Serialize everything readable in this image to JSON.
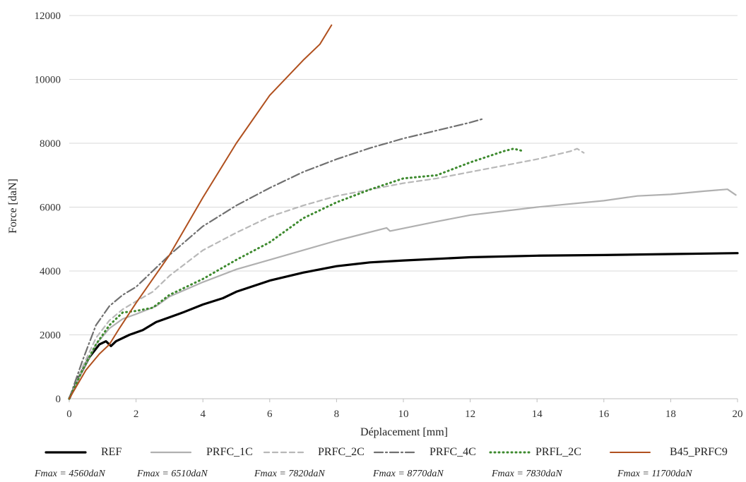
{
  "chart_data": {
    "type": "line",
    "xlabel": "Déplacement [mm]",
    "ylabel": "Force [daN]",
    "xlim": [
      0,
      20
    ],
    "ylim": [
      0,
      12000
    ],
    "x_ticks": [
      "0",
      "2",
      "4",
      "6",
      "8",
      "10",
      "12",
      "14",
      "16",
      "18",
      "20"
    ],
    "y_ticks": [
      "0",
      "2000",
      "4000",
      "6000",
      "8000",
      "10000",
      "12000"
    ],
    "grid": "horizontal",
    "legend_position": "bottom",
    "series": [
      {
        "name": "REF",
        "color": "#000000",
        "style": "solid",
        "width": 3.2,
        "fmax": "Fmax = 4560daN",
        "points": [
          [
            0,
            0
          ],
          [
            0.3,
            700
          ],
          [
            0.6,
            1300
          ],
          [
            0.9,
            1700
          ],
          [
            1.1,
            1800
          ],
          [
            1.25,
            1650
          ],
          [
            1.4,
            1800
          ],
          [
            1.8,
            2000
          ],
          [
            2.2,
            2150
          ],
          [
            2.6,
            2400
          ],
          [
            3.0,
            2550
          ],
          [
            3.4,
            2700
          ],
          [
            4.0,
            2950
          ],
          [
            4.6,
            3150
          ],
          [
            5.0,
            3350
          ],
          [
            6.0,
            3700
          ],
          [
            7.0,
            3950
          ],
          [
            8.0,
            4150
          ],
          [
            9.0,
            4270
          ],
          [
            10.0,
            4330
          ],
          [
            12.0,
            4430
          ],
          [
            14.0,
            4480
          ],
          [
            16.0,
            4500
          ],
          [
            18.0,
            4530
          ],
          [
            20.0,
            4560
          ]
        ]
      },
      {
        "name": "PRFC_1C",
        "color": "#b0b0b0",
        "style": "solid",
        "width": 2.2,
        "fmax": "Fmax = 6510daN",
        "points": [
          [
            0,
            0
          ],
          [
            0.4,
            900
          ],
          [
            0.8,
            1700
          ],
          [
            1.2,
            2200
          ],
          [
            1.6,
            2500
          ],
          [
            2.0,
            2650
          ],
          [
            2.6,
            2900
          ],
          [
            3.0,
            3200
          ],
          [
            4.0,
            3650
          ],
          [
            5.0,
            4050
          ],
          [
            6.0,
            4350
          ],
          [
            7.0,
            4650
          ],
          [
            8.0,
            4950
          ],
          [
            9.5,
            5350
          ],
          [
            9.6,
            5250
          ],
          [
            11.0,
            5550
          ],
          [
            12.0,
            5750
          ],
          [
            14.0,
            6000
          ],
          [
            16.0,
            6200
          ],
          [
            17.0,
            6350
          ],
          [
            18.0,
            6400
          ],
          [
            19.0,
            6500
          ],
          [
            19.7,
            6560
          ],
          [
            19.95,
            6380
          ]
        ]
      },
      {
        "name": "PRFC_2C",
        "color": "#b8b8b8",
        "style": "dashed",
        "width": 2.2,
        "fmax": "Fmax = 7820daN",
        "points": [
          [
            0,
            0
          ],
          [
            0.4,
            1000
          ],
          [
            0.8,
            1900
          ],
          [
            1.2,
            2450
          ],
          [
            1.6,
            2800
          ],
          [
            2.0,
            3050
          ],
          [
            2.5,
            3350
          ],
          [
            3.0,
            3850
          ],
          [
            4.0,
            4650
          ],
          [
            5.0,
            5200
          ],
          [
            6.0,
            5700
          ],
          [
            7.0,
            6050
          ],
          [
            8.0,
            6350
          ],
          [
            9.0,
            6550
          ],
          [
            10.0,
            6750
          ],
          [
            11.0,
            6900
          ],
          [
            12.0,
            7100
          ],
          [
            13.0,
            7300
          ],
          [
            14.0,
            7500
          ],
          [
            15.0,
            7750
          ],
          [
            15.2,
            7830
          ],
          [
            15.4,
            7700
          ]
        ]
      },
      {
        "name": "PRFC_4C",
        "color": "#707070",
        "style": "dashdot",
        "width": 2.2,
        "fmax": "Fmax = 8770daN",
        "points": [
          [
            0,
            0
          ],
          [
            0.4,
            1200
          ],
          [
            0.8,
            2300
          ],
          [
            1.2,
            2900
          ],
          [
            1.6,
            3250
          ],
          [
            2.0,
            3500
          ],
          [
            2.4,
            3900
          ],
          [
            3.0,
            4500
          ],
          [
            4.0,
            5400
          ],
          [
            5.0,
            6050
          ],
          [
            6.0,
            6600
          ],
          [
            7.0,
            7100
          ],
          [
            8.0,
            7500
          ],
          [
            9.0,
            7850
          ],
          [
            10.0,
            8150
          ],
          [
            11.0,
            8400
          ],
          [
            12.0,
            8650
          ],
          [
            12.4,
            8770
          ]
        ]
      },
      {
        "name": "PRFL_2C",
        "color": "#3d8a2e",
        "style": "dotted",
        "width": 3.0,
        "fmax": "Fmax = 7830daN",
        "points": [
          [
            0,
            0
          ],
          [
            0.4,
            900
          ],
          [
            0.8,
            1700
          ],
          [
            1.2,
            2300
          ],
          [
            1.6,
            2700
          ],
          [
            2.0,
            2750
          ],
          [
            2.5,
            2850
          ],
          [
            3.0,
            3250
          ],
          [
            4.0,
            3750
          ],
          [
            5.0,
            4350
          ],
          [
            6.0,
            4900
          ],
          [
            7.0,
            5650
          ],
          [
            8.0,
            6150
          ],
          [
            9.0,
            6550
          ],
          [
            10.0,
            6900
          ],
          [
            11.0,
            7000
          ],
          [
            12.0,
            7400
          ],
          [
            13.0,
            7750
          ],
          [
            13.3,
            7830
          ],
          [
            13.6,
            7750
          ]
        ]
      },
      {
        "name": "B45_PRFC9",
        "color": "#b0501e",
        "style": "solid",
        "width": 2.0,
        "fmax": "Fmax = 11700daN",
        "points": [
          [
            0,
            0
          ],
          [
            0.5,
            900
          ],
          [
            0.9,
            1400
          ],
          [
            1.2,
            1700
          ],
          [
            1.5,
            2200
          ],
          [
            2.0,
            3000
          ],
          [
            3.0,
            4500
          ],
          [
            4.0,
            6300
          ],
          [
            5.0,
            8000
          ],
          [
            6.0,
            9500
          ],
          [
            7.0,
            10600
          ],
          [
            7.5,
            11100
          ],
          [
            7.85,
            11700
          ]
        ]
      }
    ]
  }
}
